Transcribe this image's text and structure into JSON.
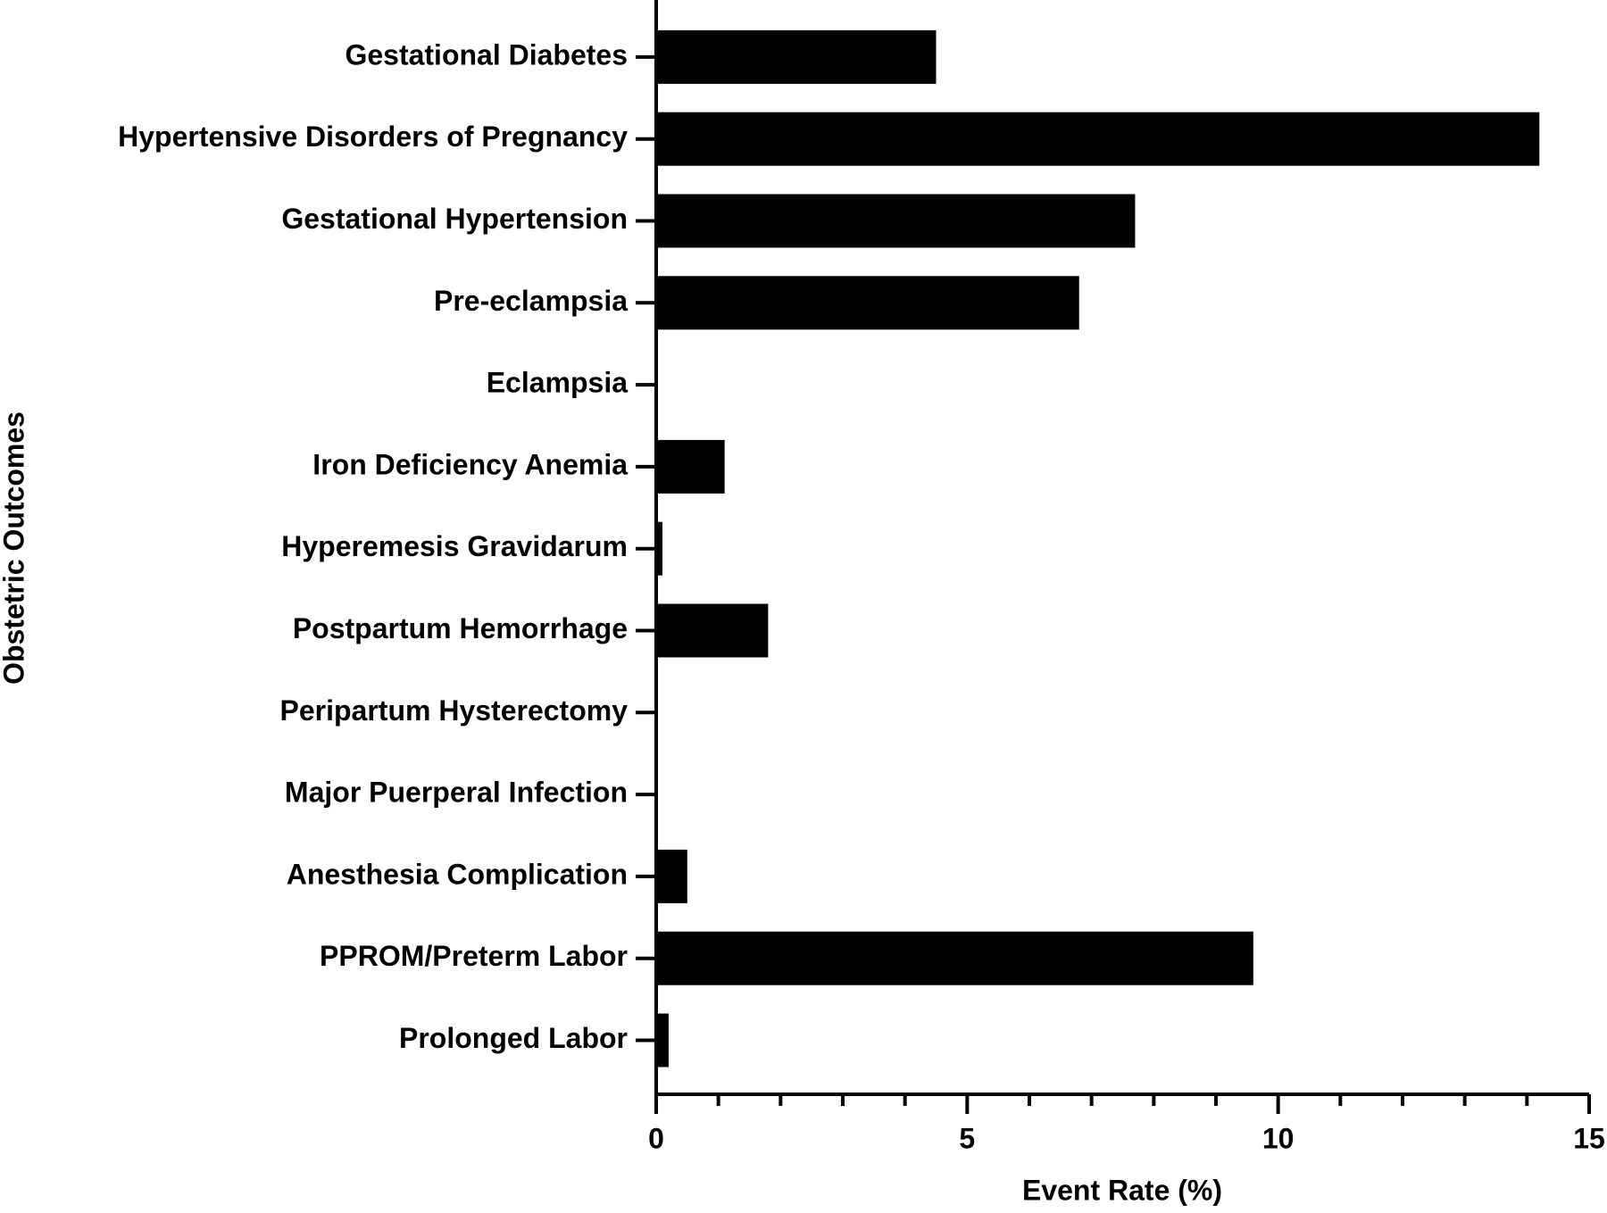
{
  "chart_data": {
    "type": "bar",
    "orientation": "horizontal",
    "x_label": "Event Rate (%)",
    "y_label": "Obstetric Outcomes",
    "categories": [
      "Gestational Diabetes",
      "Hypertensive Disorders of Pregnancy",
      "Gestational Hypertension",
      "Pre-eclampsia",
      "Eclampsia",
      "Iron Deficiency Anemia",
      "Hyperemesis Gravidarum",
      "Postpartum Hemorrhage",
      "Peripartum Hysterectomy",
      "Major Puerperal Infection",
      "Anesthesia Complication",
      "PPROM/Preterm Labor",
      "Prolonged Labor"
    ],
    "values": [
      4.5,
      14.2,
      7.7,
      6.8,
      0,
      1.1,
      0.1,
      1.8,
      0,
      0,
      0.5,
      9.6,
      0.2
    ],
    "color": "#000000",
    "xlim": [
      0,
      15
    ],
    "xticks": [
      0,
      5,
      10,
      15
    ],
    "xminorticks": [
      1,
      2,
      3,
      4,
      6,
      7,
      8,
      9,
      11,
      12,
      13,
      14
    ],
    "grid": false
  }
}
